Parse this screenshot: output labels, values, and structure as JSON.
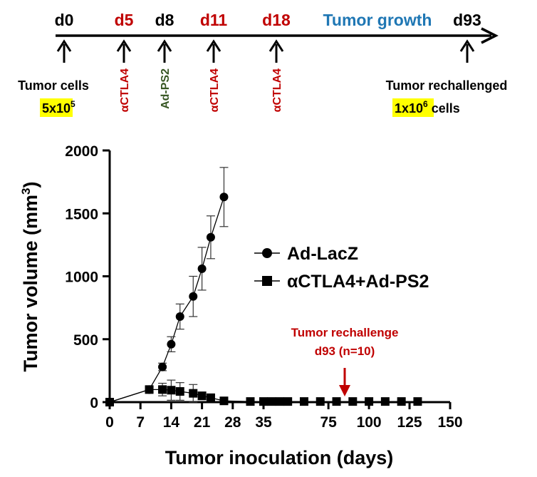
{
  "timeline": {
    "events": [
      {
        "day": "d0",
        "color": "#000000",
        "lines": [
          "Tumor cells"
        ],
        "highlight": {
          "base": "5x10",
          "sup": "5"
        }
      },
      {
        "day": "d5",
        "color": "#c00000",
        "rotated": "αCTLA4",
        "rotated_color": "#c00000"
      },
      {
        "day": "d8",
        "color": "#000000",
        "rotated": "Ad-PS2",
        "rotated_color": "#375623"
      },
      {
        "day": "d11",
        "color": "#c00000",
        "rotated": "αCTLA4",
        "rotated_color": "#c00000"
      },
      {
        "day": "d18",
        "color": "#c00000",
        "rotated": "αCTLA4",
        "rotated_color": "#c00000"
      },
      {
        "day": "d93",
        "color": "#000000",
        "lines": [
          "Tumor rechallenged"
        ],
        "highlight": {
          "base": "1x10",
          "sup": "6",
          "suffix": " cells"
        }
      }
    ],
    "growth_label": "Tumor growth",
    "growth_color": "#1f77b4",
    "highlight_color": "#ffff00"
  },
  "chart_data": {
    "type": "line",
    "xlabel": "Tumor inoculation (days)",
    "ylabel_main": "Tumor volume (mm",
    "ylabel_sup": "3",
    "ylabel_end": ")",
    "ylim": [
      0,
      2000
    ],
    "yticks": [
      0,
      500,
      1000,
      1500,
      2000
    ],
    "x_axis_break": "broken scale: 0-35 expanded, 35-150 compressed",
    "xticks": [
      0,
      7,
      14,
      21,
      28,
      35,
      75,
      100,
      125,
      150
    ],
    "xtick_labels": [
      "0",
      "7",
      "14",
      "21",
      "28",
      "35",
      "75",
      "100",
      "125",
      "150"
    ],
    "series": [
      {
        "name": "Ad-LacZ",
        "marker": "circle",
        "x": [
          0,
          9,
          12,
          14,
          16,
          19,
          21,
          23,
          26
        ],
        "y": [
          0,
          100,
          280,
          460,
          680,
          840,
          1060,
          1310,
          1630
        ],
        "err": [
          0,
          20,
          30,
          60,
          100,
          160,
          170,
          170,
          235
        ]
      },
      {
        "name": "αCTLA4+Ad-PS2",
        "marker": "square",
        "x": [
          0,
          9,
          12,
          14,
          16,
          19,
          21,
          23,
          26,
          32,
          35,
          40,
          45,
          50,
          60,
          70,
          80,
          90,
          100,
          110,
          120,
          130
        ],
        "y": [
          0,
          100,
          100,
          95,
          85,
          70,
          50,
          35,
          10,
          5,
          5,
          5,
          5,
          5,
          5,
          5,
          5,
          5,
          5,
          5,
          5,
          5
        ],
        "err": [
          0,
          20,
          50,
          80,
          70,
          70,
          30,
          20,
          10,
          0,
          0,
          0,
          0,
          0,
          0,
          0,
          0,
          0,
          0,
          0,
          0,
          0
        ]
      }
    ],
    "annotation": {
      "lines": [
        "Tumor rechallenge",
        "d93 (n=10)"
      ],
      "x": 93,
      "color": "#c00000"
    },
    "legend_placement": "right-middle"
  }
}
